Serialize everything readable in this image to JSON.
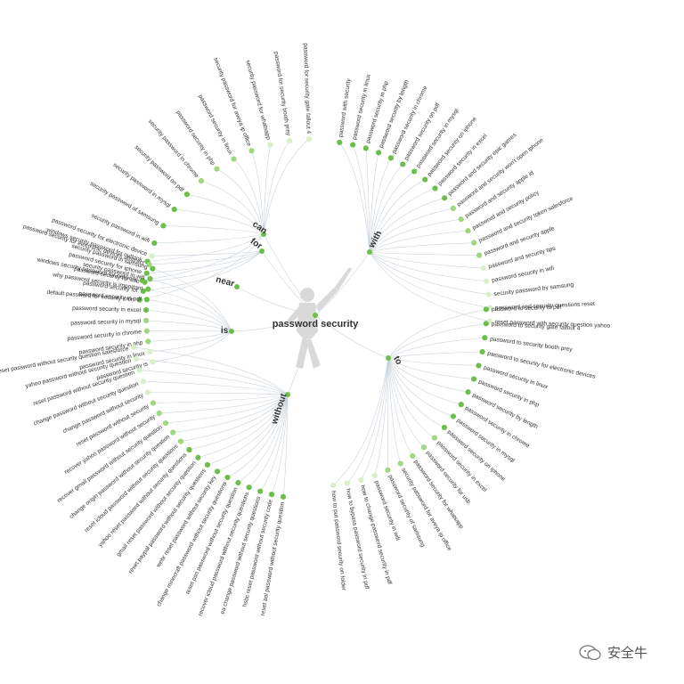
{
  "center": {
    "label": "password security"
  },
  "watermark": {
    "text": "安全牛"
  },
  "colors": {
    "strong": "#6cc04a",
    "medium": "#9fd77f",
    "light": "#d8efc9",
    "link": "#c9d3db",
    "figure": "#d9d9d9"
  },
  "groups": [
    {
      "name": "can",
      "leaves": [
        "default password for security cron",
        "windows security password for network",
        "windows security password for outlook",
        "security password in wifi",
        "security password of samsung",
        "security password in mysql",
        "security password on pdf",
        "security password in chrome",
        "password security in php",
        "password security in linux",
        "security password for aveya ip office",
        "security password for whatsapp",
        "password for security booth prey",
        "password for security gate fallout 4"
      ]
    },
    {
      "name": "for",
      "leaves": [
        "password security for",
        "password security for usb",
        "password security for iphone",
        "password security for electronic devices abstract",
        "password security for electronic device"
      ]
    },
    {
      "name": "near",
      "leaves": []
    },
    {
      "name": "with",
      "leaves": [
        "password with security",
        "password security in linux",
        "password security in php",
        "password security by length",
        "password security in chrome",
        "password security on pdf",
        "password security in mysql",
        "password security on iphone",
        "password security in excel",
        "password and security epic games",
        "password and security won't open iphone",
        "password and security apple id",
        "password and security policy",
        "password and security token salesforce",
        "password and security apple",
        "password and security tips",
        "password security in wifi",
        "security password by samsung",
        "password and security questions reset",
        "reset password with security question yahoo"
      ]
    },
    {
      "name": "is",
      "leaves": [
        "security password in samsung",
        "security password in wifi",
        "why password security is important",
        "password security in pdf",
        "password security in excel",
        "password security in mysql",
        "password security in chrome",
        "password security in php",
        "password security in linux",
        "password security is"
      ]
    },
    {
      "name": "to",
      "leaves": [
        "password to security to pdf",
        "password to security gate fallout 4",
        "password to security booth prey",
        "password to security for electronic devices",
        "password security in linux",
        "password security in php",
        "password security by length",
        "password security in chrome",
        "password security in mysql",
        "password security on iphone",
        "password security in excel",
        "password security for usb",
        "password security for whatsapp",
        "security password for aveya ip office",
        "password security of samsung",
        "password security in wifi",
        "how to change password security in pdf",
        "how to bypass password security in pdf",
        "how to put password security on folder"
      ]
    },
    {
      "name": "without",
      "leaves": [
        "reset aol password without security question",
        "hsbc reset password without security code",
        "ea change password without security questions",
        "recover icloud password without security questions",
        "reset psn password without security question",
        "change minecraft password without security questions",
        "webr reset password without security key",
        "reset paypal password without security questions",
        "gmail reset password without security question",
        "yahoo reset password without security questions",
        "reset icloud password without security questions",
        "change origin password without security question",
        "recover gmail password without security question",
        "recover yahoo password without security",
        "reset password without security",
        "change password without security",
        "change password without security question",
        "reset password without security question",
        "yahoo password without security question",
        "reset password without security question salesforce"
      ]
    }
  ]
}
